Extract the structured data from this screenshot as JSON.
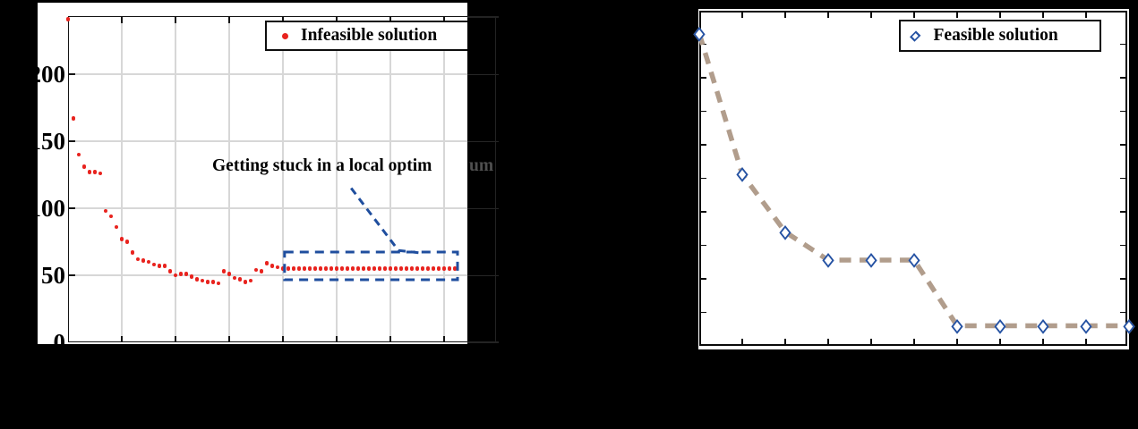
{
  "background_color": "#000000",
  "chart_data": [
    {
      "id": "infeasible-convergence",
      "type": "scatter",
      "series": [
        {
          "name": "Infeasible solution",
          "marker": "dot",
          "color": "#e8231e",
          "x": [
            0,
            1,
            2,
            3,
            4,
            5,
            6,
            7,
            8,
            9,
            10,
            11,
            12,
            13,
            14,
            15,
            16,
            17,
            18,
            19,
            20,
            21,
            22,
            23,
            24,
            25,
            26,
            27,
            28,
            29,
            30,
            31,
            32,
            33,
            34,
            35,
            36,
            37,
            38,
            39,
            40,
            41,
            42,
            43,
            44,
            45,
            46,
            47,
            48,
            49,
            50,
            51,
            52,
            53,
            54,
            55,
            56,
            57,
            58,
            59,
            60,
            61,
            62,
            63,
            64,
            65,
            66,
            67,
            68,
            69,
            70,
            71,
            72
          ],
          "y": [
            241,
            167,
            140,
            131,
            127,
            127,
            126,
            98,
            94,
            86,
            77,
            75,
            67,
            62,
            61,
            60,
            58,
            57,
            57,
            53,
            50,
            51,
            51,
            49,
            47,
            46,
            45,
            45,
            44,
            53,
            51,
            48,
            47,
            45,
            46,
            54,
            53,
            59,
            57,
            56,
            55,
            55,
            55,
            55,
            55,
            55,
            55,
            55,
            55,
            55,
            55,
            55,
            55,
            55,
            55,
            55,
            55,
            55,
            55,
            55,
            55,
            55,
            55,
            55,
            55,
            55,
            55,
            55,
            55,
            55,
            55,
            55,
            55
          ]
        }
      ],
      "xlim": [
        0,
        80
      ],
      "ylim": [
        0,
        243
      ],
      "xticks": [
        0,
        10,
        20,
        30,
        40,
        50,
        60,
        70,
        80
      ],
      "yticks": [
        0,
        50,
        100,
        150,
        200
      ],
      "ytick_labels": [
        "0",
        "50",
        "100",
        "150",
        "200"
      ],
      "xtick_labels_visible": false,
      "grid": true,
      "legend_position": "top-right",
      "annotation": {
        "text": "Getting stuck in a local optimum",
        "black_part": "Getting stuck in a local optim",
        "dimmed_part": "um",
        "color": "#000000",
        "dimmed_color": "#4f4f4f"
      },
      "highlight_box": {
        "x0": 40.3,
        "x1": 72.5,
        "y0": 46.7,
        "y1": 67.3,
        "style": "dashed",
        "color": "#1f4e9e"
      },
      "arrow": {
        "points": [
          [
            52.7,
            115
          ],
          [
            61.5,
            68.5
          ],
          [
            65.3,
            66.8
          ]
        ],
        "style": "dashed",
        "color": "#1f4e9e"
      }
    },
    {
      "id": "feasible-convergence",
      "type": "line",
      "series": [
        {
          "name": "Feasible solution",
          "marker": "diamond",
          "marker_color": "#2552a3",
          "line_color": "#b19d8c",
          "line_style": "dashed",
          "x": [
            0,
            1,
            2,
            3,
            4,
            5,
            6,
            7,
            8,
            9,
            10
          ],
          "y": [
            233,
            128,
            85,
            64,
            64,
            64,
            15,
            15,
            15,
            15,
            15
          ]
        }
      ],
      "xlim": [
        0,
        10
      ],
      "ylim": [
        0,
        250
      ],
      "xticks": [
        0,
        1,
        2,
        3,
        4,
        5,
        6,
        7,
        8,
        9,
        10
      ],
      "yticks": [
        25,
        50,
        75,
        100,
        125,
        150,
        175,
        200,
        225
      ],
      "xtick_labels_visible": false,
      "ytick_labels_visible": false,
      "grid": false,
      "legend_position": "top-right"
    }
  ]
}
